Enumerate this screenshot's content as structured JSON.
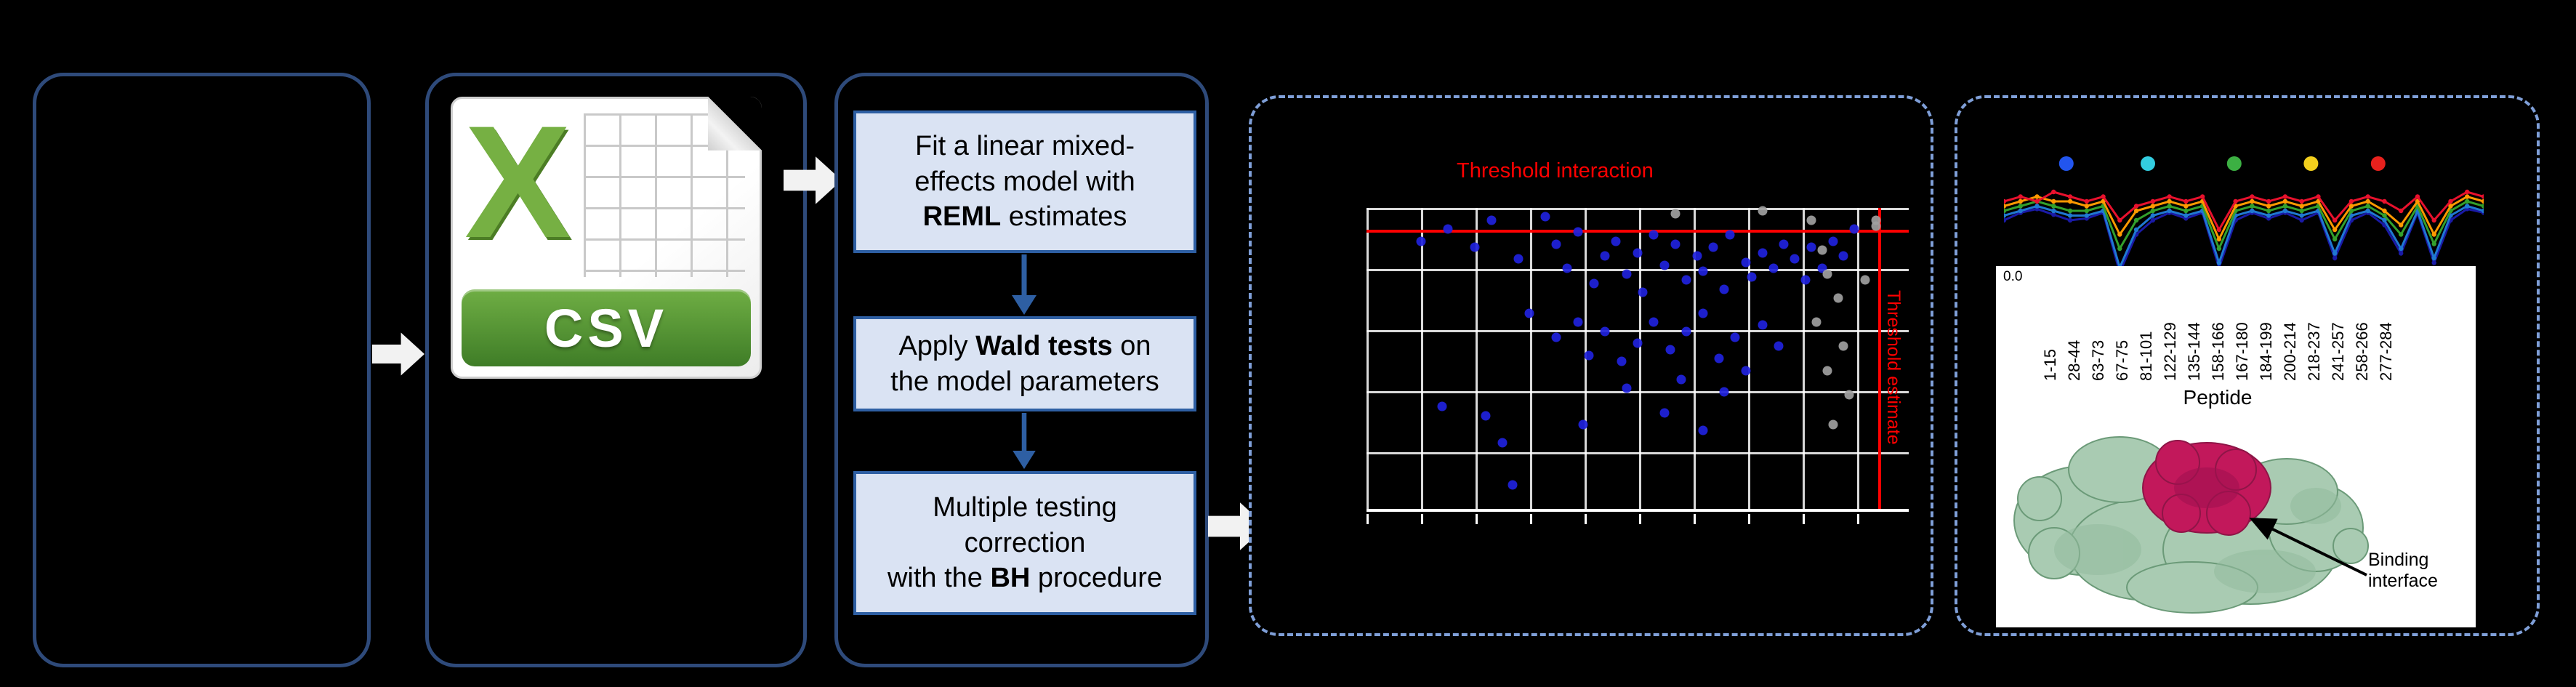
{
  "csv": {
    "logo_text": "X",
    "label": "CSV"
  },
  "steps": [
    {
      "segments": [
        {
          "t": "Fit a linear mixed-\neffects model with\n",
          "b": false
        },
        {
          "t": "REML",
          "b": true
        },
        {
          "t": " estimates",
          "b": false
        }
      ]
    },
    {
      "segments": [
        {
          "t": "Apply ",
          "b": false
        },
        {
          "t": "Wald tests",
          "b": true
        },
        {
          "t": " on\nthe model parameters",
          "b": false
        }
      ]
    },
    {
      "segments": [
        {
          "t": "Multiple testing\ncorrection\nwith the ",
          "b": false
        },
        {
          "t": "BH",
          "b": true
        },
        {
          "t": " procedure",
          "b": false
        }
      ]
    }
  ],
  "scatter": {
    "type": "scatter",
    "title": "Threshold interaction",
    "rotated_label": "Threshold estimate",
    "dot_color": "#2022dd",
    "alt_dot_color": "#a0a0a0",
    "threshold_color": "#ff0000",
    "blue_points": [
      [
        10,
        11
      ],
      [
        15,
        7
      ],
      [
        20,
        13
      ],
      [
        23,
        4
      ],
      [
        28,
        17
      ],
      [
        33,
        3
      ],
      [
        35,
        12
      ],
      [
        37,
        20
      ],
      [
        39,
        8
      ],
      [
        42,
        25
      ],
      [
        44,
        16
      ],
      [
        46,
        11
      ],
      [
        48,
        22
      ],
      [
        50,
        15
      ],
      [
        51,
        28
      ],
      [
        53,
        9
      ],
      [
        55,
        19
      ],
      [
        57,
        12
      ],
      [
        59,
        24
      ],
      [
        61,
        16
      ],
      [
        62,
        21
      ],
      [
        64,
        13
      ],
      [
        66,
        27
      ],
      [
        67,
        9
      ],
      [
        70,
        18
      ],
      [
        71,
        23
      ],
      [
        73,
        15
      ],
      [
        75,
        20
      ],
      [
        77,
        12
      ],
      [
        79,
        17
      ],
      [
        81,
        24
      ],
      [
        82,
        13
      ],
      [
        84,
        20
      ],
      [
        86,
        11
      ],
      [
        88,
        16
      ],
      [
        90,
        7
      ],
      [
        30,
        35
      ],
      [
        35,
        43
      ],
      [
        39,
        38
      ],
      [
        41,
        49
      ],
      [
        44,
        41
      ],
      [
        47,
        51
      ],
      [
        50,
        45
      ],
      [
        53,
        38
      ],
      [
        56,
        47
      ],
      [
        59,
        41
      ],
      [
        62,
        35
      ],
      [
        65,
        50
      ],
      [
        68,
        43
      ],
      [
        70,
        54
      ],
      [
        73,
        39
      ],
      [
        76,
        46
      ],
      [
        48,
        60
      ],
      [
        58,
        57
      ],
      [
        66,
        61
      ],
      [
        14,
        66
      ],
      [
        22,
        69
      ],
      [
        25,
        78
      ],
      [
        27,
        92
      ],
      [
        40,
        72
      ],
      [
        55,
        68
      ],
      [
        62,
        74
      ]
    ],
    "gray_points": [
      [
        82,
        4
      ],
      [
        84,
        14
      ],
      [
        85,
        22
      ],
      [
        87,
        30
      ],
      [
        83,
        38
      ],
      [
        88,
        46
      ],
      [
        85,
        54
      ],
      [
        89,
        62
      ],
      [
        86,
        72
      ],
      [
        92,
        24
      ],
      [
        94,
        6
      ],
      [
        57,
        2
      ],
      [
        73,
        1
      ],
      [
        94,
        4
      ]
    ]
  },
  "profile": {
    "type": "line",
    "ytick": "0.0",
    "xlabel": "Peptide",
    "annotation": "Binding interface",
    "peptide_labels": [
      "1-15",
      "28-44",
      "63-73",
      "67-75",
      "81-101",
      "122-129",
      "135-144",
      "158-166",
      "167-180",
      "184-199",
      "200-214",
      "218-237",
      "241-257",
      "258-266",
      "277-284"
    ],
    "marker_colors": [
      "#2255ee",
      "#33cde0",
      "#3cb043",
      "#f2cf1d",
      "#e8211d"
    ],
    "marker_x": [
      0.13,
      0.3,
      0.48,
      0.64,
      0.78
    ],
    "series": [
      {
        "color": "#1a1aa6",
        "values": [
          0.6,
          0.68,
          0.72,
          0.66,
          0.6,
          0.62,
          0.68,
          0.05,
          0.45,
          0.6,
          0.68,
          0.62,
          0.68,
          0.1,
          0.6,
          0.68,
          0.62,
          0.68,
          0.6,
          0.68,
          0.2,
          0.6,
          0.68,
          0.55,
          0.25,
          0.68,
          0.15,
          0.6,
          0.72,
          0.68
        ]
      },
      {
        "color": "#1f78d1",
        "values": [
          0.65,
          0.7,
          0.75,
          0.7,
          0.65,
          0.65,
          0.7,
          0.1,
          0.5,
          0.65,
          0.7,
          0.65,
          0.7,
          0.15,
          0.65,
          0.7,
          0.65,
          0.7,
          0.65,
          0.7,
          0.25,
          0.65,
          0.7,
          0.6,
          0.3,
          0.7,
          0.2,
          0.65,
          0.75,
          0.7
        ]
      },
      {
        "color": "#33a02c",
        "values": [
          0.7,
          0.75,
          0.8,
          0.75,
          0.7,
          0.7,
          0.75,
          0.3,
          0.6,
          0.7,
          0.75,
          0.7,
          0.75,
          0.3,
          0.7,
          0.75,
          0.7,
          0.75,
          0.7,
          0.75,
          0.4,
          0.7,
          0.75,
          0.65,
          0.45,
          0.75,
          0.35,
          0.7,
          0.8,
          0.75
        ]
      },
      {
        "color": "#ff9900",
        "values": [
          0.75,
          0.8,
          0.85,
          0.8,
          0.8,
          0.75,
          0.8,
          0.45,
          0.7,
          0.75,
          0.8,
          0.75,
          0.8,
          0.4,
          0.75,
          0.8,
          0.75,
          0.8,
          0.75,
          0.8,
          0.5,
          0.75,
          0.8,
          0.7,
          0.55,
          0.8,
          0.45,
          0.75,
          0.85,
          0.8
        ]
      },
      {
        "color": "#e8112d",
        "values": [
          0.8,
          0.85,
          0.8,
          0.9,
          0.85,
          0.8,
          0.85,
          0.6,
          0.75,
          0.8,
          0.85,
          0.8,
          0.85,
          0.5,
          0.8,
          0.85,
          0.8,
          0.85,
          0.8,
          0.85,
          0.6,
          0.8,
          0.85,
          0.8,
          0.7,
          0.85,
          0.6,
          0.8,
          0.9,
          0.85
        ]
      }
    ]
  }
}
